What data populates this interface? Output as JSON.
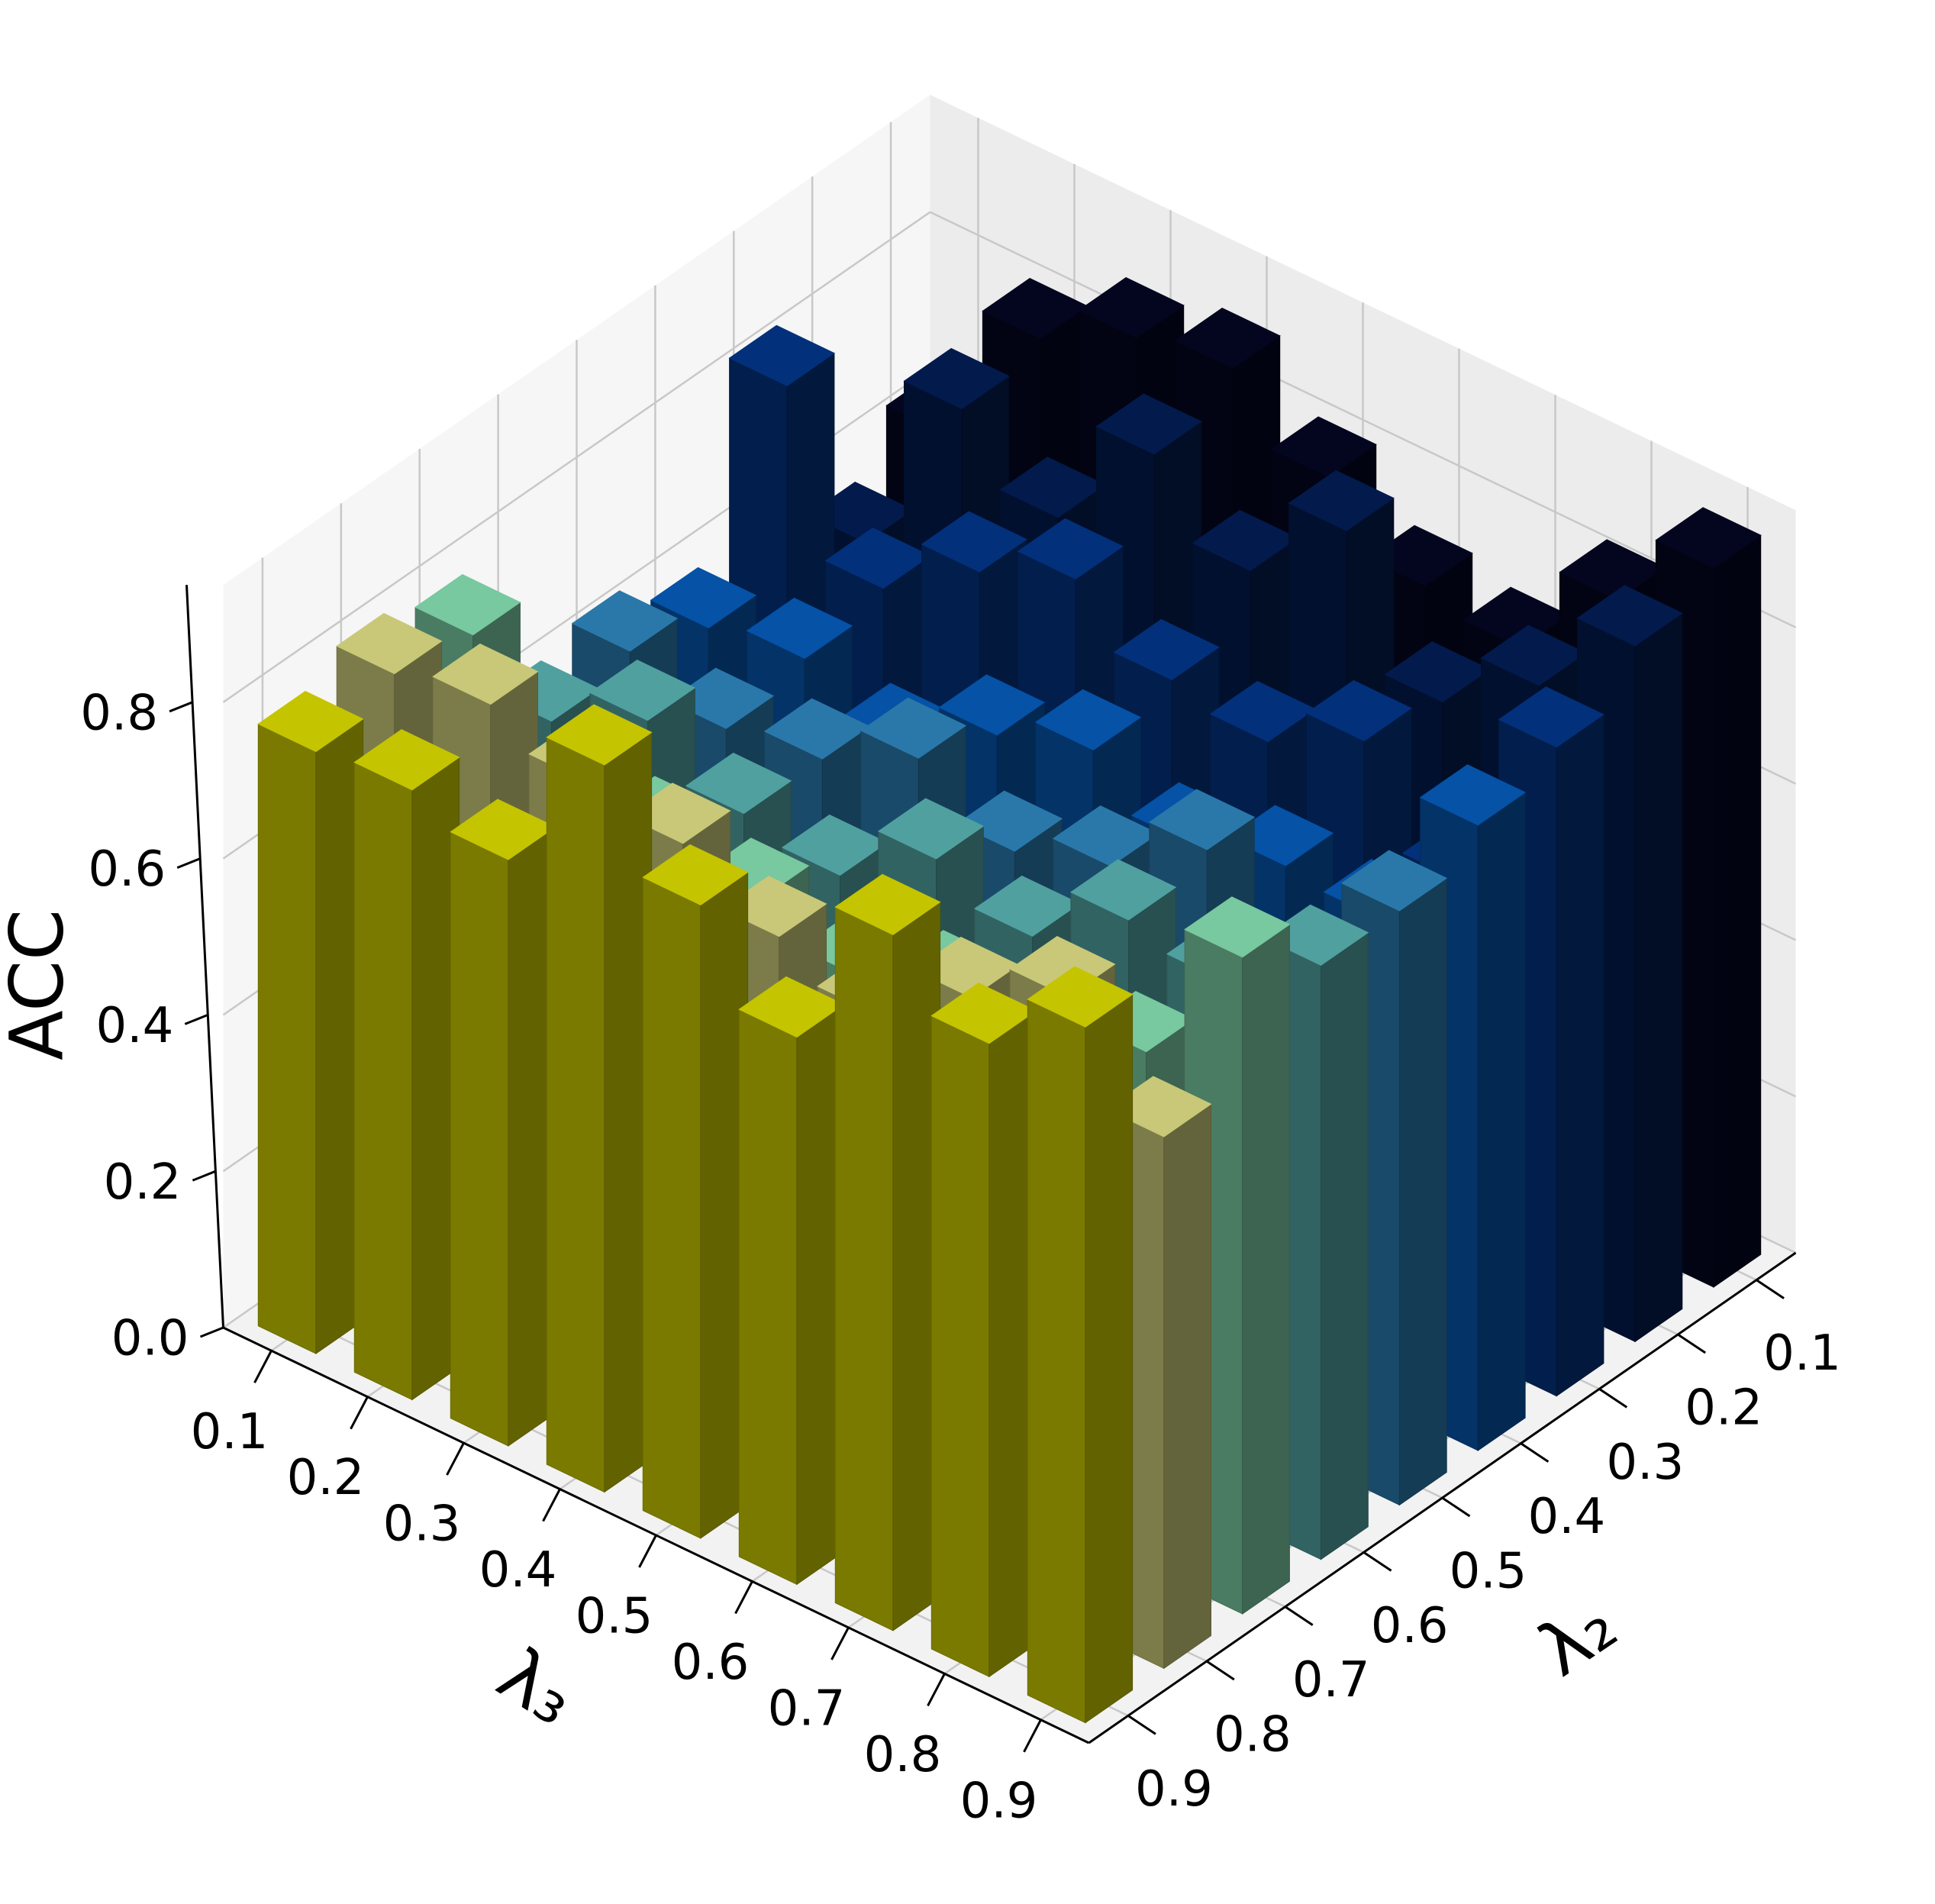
{
  "chart_data": {
    "type": "bar3d",
    "x_label": "λ₃",
    "y_label": "λ₂",
    "z_label": "ACC",
    "categories": [
      "0.1",
      "0.2",
      "0.3",
      "0.4",
      "0.5",
      "0.6",
      "0.7",
      "0.8",
      "0.9"
    ],
    "series": [
      {
        "name": "0.1",
        "color": "#04061f",
        "values": [
          0.62,
          0.8,
          0.86,
          0.88,
          0.8,
          0.72,
          0.7,
          0.82,
          0.92
        ]
      },
      {
        "name": "0.2",
        "color": "#031a4c",
        "values": [
          0.55,
          0.78,
          0.7,
          0.84,
          0.75,
          0.86,
          0.7,
          0.78,
          0.89
        ]
      },
      {
        "name": "0.3",
        "color": "#03307a",
        "values": [
          0.82,
          0.62,
          0.7,
          0.75,
          0.68,
          0.66,
          0.72,
          0.6,
          0.83
        ]
      },
      {
        "name": "0.4",
        "color": "#0552a6",
        "values": [
          0.58,
          0.6,
          0.55,
          0.62,
          0.66,
          0.6,
          0.63,
          0.62,
          0.8
        ]
      },
      {
        "name": "0.5",
        "color": "#2a78aa",
        "values": [
          0.62,
          0.58,
          0.6,
          0.66,
          0.6,
          0.64,
          0.72,
          0.55,
          0.76
        ]
      },
      {
        "name": "0.6",
        "color": "#50a0a0",
        "values": [
          0.6,
          0.66,
          0.6,
          0.58,
          0.66,
          0.62,
          0.7,
          0.68,
          0.76
        ]
      },
      {
        "name": "0.7",
        "color": "#78c8a0",
        "values": [
          0.78,
          0.6,
          0.64,
          0.62,
          0.58,
          0.62,
          0.6,
          0.66,
          0.84
        ]
      },
      {
        "name": "0.8",
        "color": "#c8c878",
        "values": [
          0.8,
          0.82,
          0.78,
          0.76,
          0.7,
          0.66,
          0.74,
          0.8,
          0.68
        ]
      },
      {
        "name": "0.9",
        "color": "#c4c400",
        "values": [
          0.77,
          0.78,
          0.75,
          0.93,
          0.81,
          0.7,
          0.89,
          0.81,
          0.89
        ]
      }
    ],
    "zlim": [
      0,
      0.95
    ],
    "zticks": [
      {
        "value": 0,
        "label": "0.0"
      },
      0.2,
      0.4,
      0.6,
      0.8
    ]
  }
}
